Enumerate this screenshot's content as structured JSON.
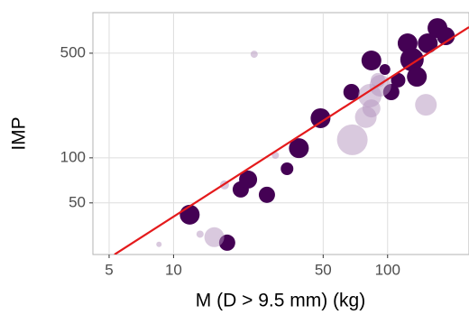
{
  "chart_data": {
    "type": "scatter",
    "x_label": "M (D > 9.5 mm) (kg)",
    "y_label": "IMP",
    "log_x": true,
    "log_y": true,
    "grid": true,
    "xlim": [
      4.2,
      240
    ],
    "ylim": [
      22.6,
      933
    ],
    "xticks": [
      5,
      10,
      50,
      100
    ],
    "yticks": [
      50,
      100,
      500
    ],
    "series": [
      {
        "color": "#440154",
        "opacity": 1,
        "x": [
          11.9,
          17.8,
          20.6,
          22.3,
          27.3,
          33.9,
          38.5,
          48.6,
          67.8,
          84.0,
          97.1,
          104,
          124,
          130,
          137,
          154,
          171,
          187,
          112
        ],
        "values": [
          41.7,
          27.1,
          61.5,
          71.6,
          56.6,
          84.5,
          116,
          184,
          275,
          447,
          389,
          275,
          582,
          453,
          348,
          582,
          736,
          650,
          330
        ],
        "sizes": [
          11,
          9,
          9,
          10,
          9,
          7,
          11,
          11,
          9,
          11,
          6,
          9,
          11,
          13,
          11,
          11,
          11,
          10,
          8
        ]
      },
      {
        "color": "#b493bd",
        "opacity": 0.5,
        "x": [
          23.8,
          15.5,
          13.3,
          17.3,
          29.9,
          68.4,
          79.1,
          84.0,
          82.6,
          92.5,
          151,
          8.55,
          90.1
        ],
        "values": [
          492,
          29.5,
          30.9,
          65.9,
          104,
          132,
          187,
          214,
          260,
          303,
          226,
          26.4,
          330
        ],
        "sizes": [
          4,
          11,
          4,
          5,
          4,
          17,
          12,
          10,
          13,
          12,
          12,
          3,
          8
        ]
      }
    ],
    "trend_line": {
      "color": "#e41a1c",
      "x": [
        5.3,
        240
      ],
      "y": [
        22.6,
        747
      ]
    }
  }
}
